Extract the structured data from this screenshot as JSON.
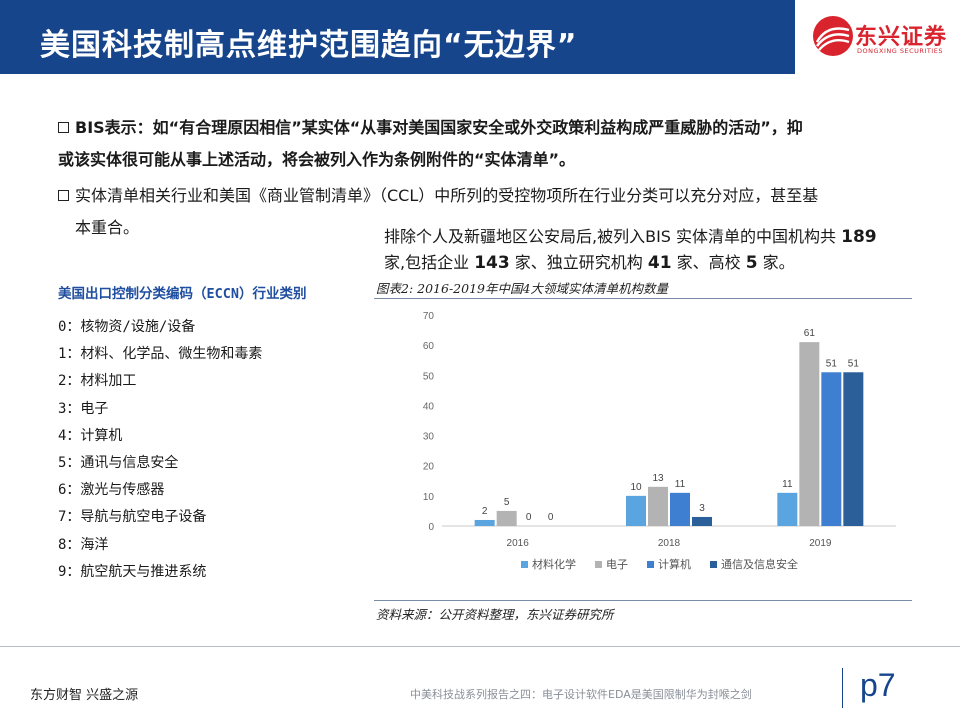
{
  "header": {
    "title": "美国科技制高点维护范围趋向“无边界”",
    "logo_name": "东兴证券",
    "logo_sub": "DONGXING SECURITIES"
  },
  "bullets": [
    {
      "line1": "BIS表示：如“有合理原因相信”某实体“从事对美国国家安全或外交政策利益构成严重威胁的活动”，抑",
      "line2": "或该实体很可能从事上述活动，将会被列入作为条例附件的“实体清单”。"
    },
    {
      "line1": "实体清单相关行业和美国《商业管制清单》（CCL）中所列的受控物项所在行业分类可以充分对应，甚至基",
      "line2": "本重合。"
    }
  ],
  "callout": {
    "t1": "排除个人及新疆地区公安局后,被列入BIS 实体清单的中国机构共 ",
    "n1": "189",
    "t2": "家,包括企业 ",
    "n2": "143",
    "t3": " 家、独立研究机构 ",
    "n3": "41",
    "t4": " 家、高校 ",
    "n4": "5",
    "t5": " 家。"
  },
  "eccn": {
    "title": "美国出口控制分类编码（ECCN）行业类别",
    "items": [
      "0：核物资/设施/设备",
      "1：材料、化学品、微生物和毒素",
      "2：材料加工",
      "3：电子",
      "4：计算机",
      "5：通讯与信息安全",
      "6：激光与传感器",
      "7：导航与航空电子设备",
      "8：海洋",
      "9：航空航天与推进系统"
    ]
  },
  "figure": {
    "caption": "图表2: 2016-2019年中国4大领域实体清单机构数量",
    "source": "资料来源：公开资料整理，东兴证券研究所"
  },
  "chart_data": {
    "type": "bar",
    "categories": [
      "2016",
      "2018",
      "2019"
    ],
    "series": [
      {
        "name": "材料化学",
        "color": "#5aa4e0",
        "values": [
          2,
          10,
          11
        ]
      },
      {
        "name": "电子",
        "color": "#b3b3b3",
        "values": [
          5,
          13,
          61
        ]
      },
      {
        "name": "计算机",
        "color": "#3f7fd1",
        "values": [
          0,
          11,
          51
        ]
      },
      {
        "name": "通信及信息安全",
        "color": "#2a5f99",
        "values": [
          0,
          3,
          51
        ]
      }
    ],
    "ylim": [
      0,
      70
    ],
    "yticks": [
      "0",
      "10",
      "20",
      "30",
      "40",
      "50",
      "60",
      "70"
    ],
    "grid": false,
    "legend": "bottom"
  },
  "footer": {
    "left": "东方财智  兴盛之源",
    "center": "中美科技战系列报告之四：电子设计软件EDA是美国限制华为封喉之剑",
    "page": "p7"
  },
  "colors": {
    "header_bg": "#16458c",
    "brand_red": "#d9232d",
    "eccn_title": "#1f4ea0"
  }
}
